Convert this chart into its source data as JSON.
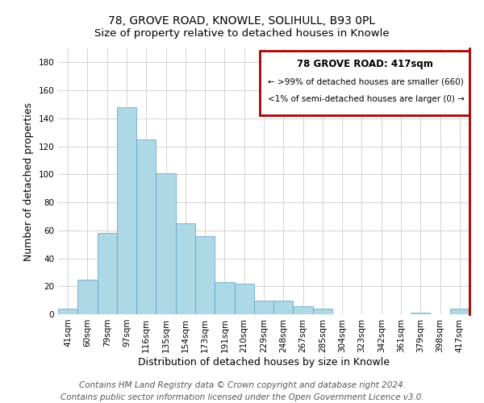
{
  "title": "78, GROVE ROAD, KNOWLE, SOLIHULL, B93 0PL",
  "subtitle": "Size of property relative to detached houses in Knowle",
  "xlabel": "Distribution of detached houses by size in Knowle",
  "ylabel": "Number of detached properties",
  "bar_labels": [
    "41sqm",
    "60sqm",
    "79sqm",
    "97sqm",
    "116sqm",
    "135sqm",
    "154sqm",
    "173sqm",
    "191sqm",
    "210sqm",
    "229sqm",
    "248sqm",
    "267sqm",
    "285sqm",
    "304sqm",
    "323sqm",
    "342sqm",
    "361sqm",
    "379sqm",
    "398sqm",
    "417sqm"
  ],
  "bar_values": [
    4,
    25,
    58,
    148,
    125,
    101,
    65,
    56,
    23,
    22,
    10,
    10,
    6,
    4,
    0,
    0,
    0,
    0,
    1,
    0,
    4
  ],
  "bar_color": "#add8e6",
  "bar_edge_color": "#5b9dc9",
  "ylim": [
    0,
    190
  ],
  "yticks": [
    0,
    20,
    40,
    60,
    80,
    100,
    120,
    140,
    160,
    180
  ],
  "legend_title": "78 GROVE ROAD: 417sqm",
  "legend_line1": "← >99% of detached houses are smaller (660)",
  "legend_line2": "<1% of semi-detached houses are larger (0) →",
  "legend_box_edge": "#aa0000",
  "red_line_color": "#aa0000",
  "footer_line1": "Contains HM Land Registry data © Crown copyright and database right 2024.",
  "footer_line2": "Contains public sector information licensed under the Open Government Licence v3.0.",
  "title_fontsize": 10,
  "subtitle_fontsize": 9.5,
  "axis_label_fontsize": 9,
  "tick_fontsize": 7.5,
  "footer_fontsize": 7.5
}
